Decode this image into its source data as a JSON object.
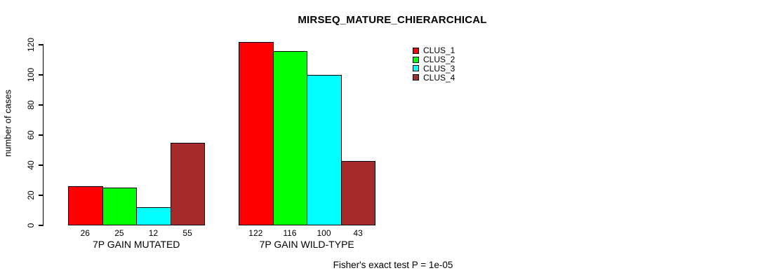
{
  "page": {
    "background_color": "#ffffff",
    "text_color": "#000000"
  },
  "chart_data": {
    "type": "bar",
    "title": "MIRSEQ_MATURE_CHIERARCHICAL",
    "ylabel": "number of cases",
    "xlabel": "",
    "footer": "Fisher's exact test P = 1e-05",
    "categories": [
      "7P GAIN MUTATED",
      "7P GAIN WILD-TYPE"
    ],
    "series": [
      {
        "name": "CLUS_1",
        "color": "#FF0000",
        "values": [
          26,
          122
        ]
      },
      {
        "name": "CLUS_2",
        "color": "#00FF00",
        "values": [
          25,
          116
        ]
      },
      {
        "name": "CLUS_3",
        "color": "#00FFFF",
        "values": [
          12,
          100
        ]
      },
      {
        "name": "CLUS_4",
        "color": "#A52A2A",
        "values": [
          55,
          43
        ]
      }
    ],
    "bar_value_labels_shown": true,
    "ylim": [
      0,
      120
    ],
    "yticks": [
      0,
      20,
      40,
      60,
      80,
      100,
      120
    ],
    "grid": false,
    "legend_position": "top-right",
    "legend_entries": [
      "CLUS_1",
      "CLUS_2",
      "CLUS_3",
      "CLUS_4"
    ],
    "axis_color": "#000000"
  }
}
